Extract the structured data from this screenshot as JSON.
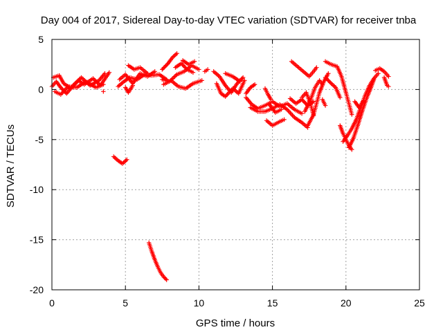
{
  "chart_data": {
    "type": "scatter",
    "title": "Day 004 of 2017, Sidereal Day-to-day VTEC variation (SDTVAR) for receiver tnba",
    "xlabel": "GPS time / hours",
    "ylabel": "SDTVAR / TECUs",
    "xlim": [
      0,
      25
    ],
    "ylim": [
      -20,
      5
    ],
    "xticks": [
      0,
      5,
      10,
      15,
      20,
      25
    ],
    "yticks": [
      5,
      0,
      -5,
      -10,
      -15,
      -20
    ],
    "xtick_labels": [
      "0",
      "5",
      "10",
      "15",
      "20",
      "25"
    ],
    "ytick_labels": [
      "5",
      "0",
      "-5",
      "-10",
      "-15",
      "-20"
    ],
    "grid": true,
    "marker": "+",
    "color": "#ff0000",
    "series": [
      {
        "name": "SDTVAR",
        "tracks": [
          [
            [
              0.0,
              0.3
            ],
            [
              0.3,
              0.8
            ],
            [
              0.6,
              0.2
            ],
            [
              1.0,
              -0.4
            ],
            [
              1.5,
              0.5
            ],
            [
              2.0,
              1.2
            ],
            [
              2.6,
              0.4
            ],
            [
              3.2,
              0.9
            ],
            [
              3.6,
              1.6
            ]
          ],
          [
            [
              0.1,
              1.2
            ],
            [
              0.5,
              1.4
            ],
            [
              0.8,
              0.6
            ],
            [
              1.3,
              0.1
            ],
            [
              1.8,
              0.9
            ],
            [
              2.2,
              0.5
            ],
            [
              2.8,
              1.1
            ],
            [
              3.3,
              0.4
            ],
            [
              3.9,
              1.7
            ]
          ],
          [
            [
              0.2,
              -0.2
            ],
            [
              0.6,
              -0.5
            ],
            [
              1.1,
              0.3
            ],
            [
              1.7,
              0.2
            ],
            [
              2.3,
              0.8
            ],
            [
              3.0,
              0.2
            ],
            [
              3.5,
              0.5
            ]
          ],
          [
            [
              3.5,
              -0.2
            ]
          ],
          [
            [
              4.5,
              0.3
            ],
            [
              4.9,
              0.8
            ],
            [
              5.3,
              1.2
            ],
            [
              5.8,
              1.0
            ],
            [
              6.3,
              1.5
            ],
            [
              6.8,
              1.4
            ],
            [
              7.3,
              1.5
            ],
            [
              7.8,
              1.0
            ]
          ],
          [
            [
              4.6,
              1.0
            ],
            [
              5.0,
              1.5
            ],
            [
              5.5,
              0.6
            ],
            [
              6.0,
              1.6
            ],
            [
              6.5,
              1.3
            ],
            [
              7.0,
              1.8
            ]
          ],
          [
            [
              5.0,
              0.2
            ],
            [
              5.2,
              -0.3
            ],
            [
              5.5,
              0.4
            ]
          ],
          [
            [
              5.2,
              2.4
            ],
            [
              5.6,
              2.0
            ],
            [
              6.0,
              2.2
            ],
            [
              6.5,
              1.6
            ]
          ],
          [
            [
              7.5,
              2.0
            ],
            [
              7.9,
              2.6
            ],
            [
              8.2,
              3.2
            ],
            [
              8.5,
              3.6
            ]
          ],
          [
            [
              7.5,
              1.0
            ],
            [
              8.0,
              0.8
            ],
            [
              8.5,
              1.5
            ],
            [
              9.0,
              1.8
            ],
            [
              9.5,
              2.4
            ],
            [
              10.0,
              2.0
            ]
          ],
          [
            [
              7.6,
              0.5
            ],
            [
              8.1,
              0.9
            ],
            [
              8.6,
              0.3
            ],
            [
              9.1,
              0.1
            ],
            [
              9.6,
              0.6
            ],
            [
              10.2,
              0.9
            ]
          ],
          [
            [
              8.4,
              2.2
            ],
            [
              8.8,
              2.6
            ],
            [
              9.2,
              2.0
            ],
            [
              9.6,
              1.7
            ]
          ],
          [
            [
              8.9,
              2.9
            ],
            [
              9.3,
              2.5
            ],
            [
              9.7,
              2.8
            ]
          ],
          [
            [
              10.4,
              1.8
            ],
            [
              10.6,
              2.0
            ]
          ],
          [
            [
              4.2,
              -6.7
            ],
            [
              4.5,
              -7.1
            ],
            [
              4.8,
              -7.4
            ],
            [
              5.1,
              -7.0
            ]
          ],
          [
            [
              6.6,
              -15.3
            ],
            [
              6.8,
              -16.2
            ],
            [
              7.0,
              -17.0
            ],
            [
              7.2,
              -17.7
            ],
            [
              7.4,
              -18.3
            ],
            [
              7.6,
              -18.7
            ],
            [
              7.8,
              -19.0
            ]
          ],
          [
            [
              11.0,
              1.8
            ],
            [
              11.4,
              1.3
            ],
            [
              11.8,
              0.4
            ],
            [
              12.2,
              -0.3
            ],
            [
              12.6,
              0.6
            ],
            [
              13.0,
              1.2
            ]
          ],
          [
            [
              11.2,
              0.6
            ],
            [
              11.5,
              -0.4
            ],
            [
              11.8,
              -0.7
            ],
            [
              12.3,
              0.1
            ],
            [
              12.7,
              -0.4
            ],
            [
              13.1,
              0.9
            ]
          ],
          [
            [
              11.8,
              1.6
            ],
            [
              12.3,
              1.3
            ],
            [
              12.8,
              0.8
            ]
          ],
          [
            [
              13.2,
              -0.4
            ],
            [
              13.5,
              0.2
            ],
            [
              13.8,
              0.5
            ]
          ],
          [
            [
              13.2,
              -0.8
            ],
            [
              13.6,
              -1.5
            ],
            [
              14.0,
              -1.9
            ],
            [
              14.5,
              -1.6
            ],
            [
              15.0,
              -1.2
            ],
            [
              15.5,
              -1.7
            ],
            [
              16.0,
              -1.4
            ],
            [
              16.5,
              -2.0
            ],
            [
              17.0,
              -2.4
            ]
          ],
          [
            [
              13.5,
              -1.8
            ],
            [
              14.0,
              -2.2
            ],
            [
              14.5,
              -2.2
            ],
            [
              15.0,
              -1.9
            ],
            [
              15.5,
              -1.5
            ],
            [
              16.0,
              -2.0
            ],
            [
              16.5,
              -2.8
            ],
            [
              17.0,
              -3.3
            ],
            [
              17.4,
              -3.8
            ]
          ],
          [
            [
              14.8,
              -1.5
            ],
            [
              15.2,
              -2.3
            ],
            [
              15.6,
              -2.0
            ]
          ],
          [
            [
              14.5,
              0.1
            ],
            [
              14.7,
              -0.5
            ],
            [
              14.9,
              -1.0
            ]
          ],
          [
            [
              14.6,
              -3.1
            ],
            [
              15.0,
              -3.6
            ],
            [
              15.5,
              -3.2
            ],
            [
              15.8,
              -3.0
            ]
          ],
          [
            [
              16.2,
              -0.9
            ],
            [
              16.6,
              -1.4
            ],
            [
              17.0,
              -1.0
            ],
            [
              17.4,
              -1.6
            ],
            [
              17.8,
              -1.2
            ]
          ],
          [
            [
              16.3,
              2.8
            ],
            [
              16.7,
              2.3
            ],
            [
              17.1,
              1.8
            ],
            [
              17.5,
              1.3
            ],
            [
              17.8,
              1.8
            ],
            [
              18.0,
              2.2
            ]
          ],
          [
            [
              17.4,
              -3.6
            ],
            [
              17.8,
              -2.5
            ],
            [
              18.0,
              -1.4
            ],
            [
              18.2,
              -0.3
            ],
            [
              18.5,
              0.8
            ],
            [
              18.8,
              1.6
            ]
          ],
          [
            [
              17.2,
              -2.2
            ],
            [
              17.6,
              -1.0
            ],
            [
              17.9,
              0.2
            ],
            [
              18.2,
              0.9
            ],
            [
              18.4,
              0.5
            ]
          ],
          [
            [
              17.0,
              -0.8
            ],
            [
              17.3,
              -0.3
            ],
            [
              17.6,
              -1.5
            ],
            [
              17.8,
              -2.6
            ]
          ],
          [
            [
              18.6,
              2.8
            ],
            [
              19.0,
              2.5
            ],
            [
              19.4,
              2.3
            ],
            [
              19.7,
              1.3
            ],
            [
              20.0,
              -0.3
            ],
            [
              20.2,
              -1.4
            ],
            [
              20.4,
              -2.5
            ]
          ],
          [
            [
              18.6,
              1.2
            ],
            [
              19.0,
              0.6
            ],
            [
              19.3,
              0.2
            ],
            [
              19.6,
              -0.8
            ]
          ],
          [
            [
              18.4,
              -1.0
            ],
            [
              18.6,
              -1.6
            ]
          ],
          [
            [
              19.6,
              -3.6
            ],
            [
              19.8,
              -4.4
            ],
            [
              20.0,
              -5.0
            ],
            [
              20.2,
              -5.6
            ],
            [
              20.4,
              -6.0
            ]
          ],
          [
            [
              19.8,
              -5.2
            ],
            [
              20.1,
              -4.6
            ],
            [
              20.4,
              -3.9
            ],
            [
              20.7,
              -3.0
            ],
            [
              21.0,
              -1.8
            ],
            [
              21.3,
              -0.6
            ],
            [
              21.6,
              0.4
            ],
            [
              21.9,
              1.1
            ],
            [
              22.2,
              1.6
            ]
          ],
          [
            [
              20.2,
              -5.8
            ],
            [
              20.5,
              -4.9
            ],
            [
              20.8,
              -3.6
            ],
            [
              21.1,
              -2.2
            ],
            [
              21.4,
              -0.9
            ],
            [
              21.7,
              0.2
            ],
            [
              21.9,
              1.0
            ]
          ],
          [
            [
              20.6,
              -1.2
            ],
            [
              20.9,
              -1.8
            ],
            [
              21.2,
              -1.1
            ]
          ],
          [
            [
              22.0,
              1.9
            ],
            [
              22.3,
              2.1
            ],
            [
              22.6,
              1.8
            ],
            [
              22.9,
              1.3
            ]
          ],
          [
            [
              22.6,
              1.2
            ],
            [
              22.8,
              0.4
            ],
            [
              22.9,
              0.3
            ]
          ]
        ]
      }
    ]
  }
}
